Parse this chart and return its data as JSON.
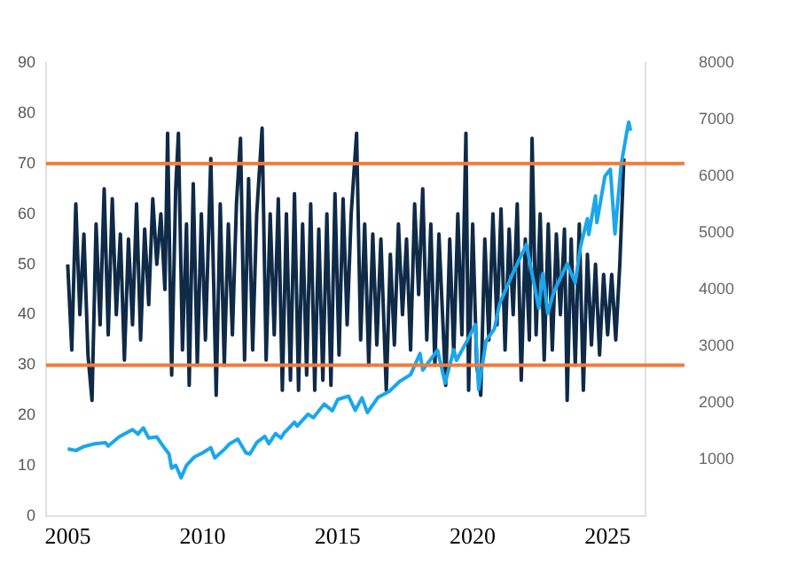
{
  "chart_data": {
    "type": "line",
    "xlim": [
      2004.2,
      2026.4
    ],
    "xticks": [
      2005,
      2010,
      2015,
      2020,
      2025
    ],
    "ylim": [
      0,
      90
    ],
    "yticks": [
      0,
      10,
      20,
      30,
      40,
      50,
      60,
      70,
      80,
      90
    ],
    "y2lim": [
      0,
      8000
    ],
    "y2ticks": [
      1000,
      2000,
      3000,
      4000,
      5000,
      6000,
      7000,
      8000
    ],
    "grid": false,
    "legend": false,
    "marker": "none",
    "line_style": "solid",
    "ref_lines": [
      {
        "axis": "y",
        "value": 70,
        "color": "#f07b3a"
      },
      {
        "axis": "y",
        "value": 30,
        "color": "#f07b3a"
      }
    ],
    "series": [
      {
        "color": "#0f2a47",
        "x": [
          2005.0,
          2005.15,
          2005.3,
          2005.45,
          2005.6,
          2005.75,
          2005.9,
          2006.05,
          2006.2,
          2006.35,
          2006.5,
          2006.65,
          2006.8,
          2006.95,
          2007.1,
          2007.25,
          2007.4,
          2007.55,
          2007.7,
          2007.85,
          2008.0,
          2008.15,
          2008.3,
          2008.45,
          2008.6,
          2008.7,
          2008.85,
          2009.0,
          2009.1,
          2009.25,
          2009.4,
          2009.5,
          2009.65,
          2009.8,
          2009.95,
          2010.1,
          2010.3,
          2010.5,
          2010.65,
          2010.8,
          2010.95,
          2011.1,
          2011.25,
          2011.4,
          2011.55,
          2011.7,
          2011.85,
          2012.0,
          2012.2,
          2012.35,
          2012.5,
          2012.65,
          2012.8,
          2012.95,
          2013.1,
          2013.25,
          2013.4,
          2013.55,
          2013.7,
          2013.85,
          2014.0,
          2014.15,
          2014.3,
          2014.45,
          2014.6,
          2014.75,
          2014.9,
          2015.05,
          2015.2,
          2015.35,
          2015.5,
          2015.7,
          2015.85,
          2016.0,
          2016.15,
          2016.3,
          2016.45,
          2016.6,
          2016.8,
          2016.95,
          2017.1,
          2017.25,
          2017.4,
          2017.55,
          2017.7,
          2017.85,
          2018.0,
          2018.15,
          2018.3,
          2018.45,
          2018.6,
          2018.75,
          2018.9,
          2019.0,
          2019.15,
          2019.3,
          2019.45,
          2019.6,
          2019.75,
          2019.85,
          2020.0,
          2020.15,
          2020.3,
          2020.45,
          2020.6,
          2020.75,
          2020.9,
          2021.05,
          2021.2,
          2021.35,
          2021.5,
          2021.65,
          2021.8,
          2021.95,
          2022.1,
          2022.2,
          2022.35,
          2022.5,
          2022.65,
          2022.8,
          2022.95,
          2023.1,
          2023.25,
          2023.4,
          2023.5,
          2023.65,
          2023.8,
          2023.95,
          2024.1,
          2024.25,
          2024.4,
          2024.55,
          2024.7,
          2024.85,
          2025.0,
          2025.15,
          2025.3,
          2025.45,
          2025.6
        ],
        "values": [
          50,
          33,
          62,
          40,
          56,
          32,
          23,
          58,
          38,
          65,
          36,
          63,
          40,
          56,
          31,
          55,
          38,
          62,
          35,
          57,
          42,
          63,
          50,
          60,
          45,
          76,
          28,
          65,
          76,
          33,
          58,
          26,
          66,
          30,
          60,
          35,
          71,
          24,
          62,
          30,
          58,
          36,
          62,
          75,
          31,
          67,
          33,
          60,
          77,
          31,
          60,
          36,
          63,
          25,
          60,
          27,
          64,
          25,
          58,
          28,
          62,
          25,
          57,
          27,
          60,
          26,
          64,
          32,
          63,
          38,
          60,
          76,
          35,
          58,
          30,
          56,
          34,
          55,
          25,
          52,
          34,
          58,
          40,
          55,
          33,
          62,
          44,
          65,
          35,
          58,
          30,
          56,
          38,
          26,
          55,
          32,
          60,
          36,
          76,
          25,
          58,
          30,
          24,
          55,
          35,
          60,
          38,
          61,
          33,
          57,
          40,
          62,
          27,
          55,
          35,
          75,
          36,
          60,
          31,
          58,
          33,
          56,
          40,
          57,
          23,
          55,
          30,
          58,
          25,
          52,
          34,
          50,
          32,
          48,
          36,
          48,
          35,
          50,
          71
        ]
      },
      {
        "color": "#1aa7ec",
        "axis": "y2",
        "x": [
          2005.0,
          2005.3,
          2005.6,
          2006.0,
          2006.4,
          2006.5,
          2006.9,
          2007.4,
          2007.6,
          2007.8,
          2008.0,
          2008.3,
          2008.5,
          2008.75,
          2008.85,
          2009.0,
          2009.2,
          2009.4,
          2009.7,
          2010.0,
          2010.3,
          2010.45,
          2010.8,
          2011.0,
          2011.3,
          2011.6,
          2011.75,
          2012.0,
          2012.3,
          2012.45,
          2012.7,
          2012.9,
          2013.0,
          2013.4,
          2013.5,
          2013.9,
          2014.1,
          2014.5,
          2014.8,
          2015.0,
          2015.4,
          2015.65,
          2015.9,
          2016.1,
          2016.5,
          2016.9,
          2017.3,
          2017.7,
          2018.05,
          2018.15,
          2018.7,
          2018.98,
          2019.3,
          2019.4,
          2019.8,
          2020.1,
          2020.22,
          2020.5,
          2020.8,
          2021.0,
          2021.5,
          2021.99,
          2022.45,
          2022.6,
          2022.78,
          2023.0,
          2023.5,
          2023.8,
          2024.0,
          2024.25,
          2024.3,
          2024.55,
          2024.6,
          2024.9,
          2025.1,
          2025.27,
          2025.5,
          2025.7,
          2025.78,
          2025.85
        ],
        "values": [
          1190,
          1160,
          1230,
          1280,
          1300,
          1240,
          1400,
          1530,
          1450,
          1560,
          1380,
          1400,
          1260,
          1100,
          850,
          900,
          680,
          900,
          1050,
          1120,
          1210,
          1030,
          1180,
          1280,
          1360,
          1120,
          1100,
          1300,
          1410,
          1280,
          1460,
          1380,
          1460,
          1660,
          1590,
          1800,
          1740,
          1980,
          1860,
          2060,
          2120,
          1870,
          2090,
          1830,
          2100,
          2200,
          2380,
          2500,
          2870,
          2580,
          2930,
          2350,
          2940,
          2750,
          3100,
          3380,
          2240,
          3100,
          3300,
          3750,
          4300,
          4790,
          3670,
          4280,
          3580,
          3950,
          4450,
          4120,
          4770,
          5250,
          4970,
          5650,
          5180,
          6000,
          6120,
          4980,
          6200,
          6750,
          6950,
          6800
        ]
      }
    ]
  }
}
